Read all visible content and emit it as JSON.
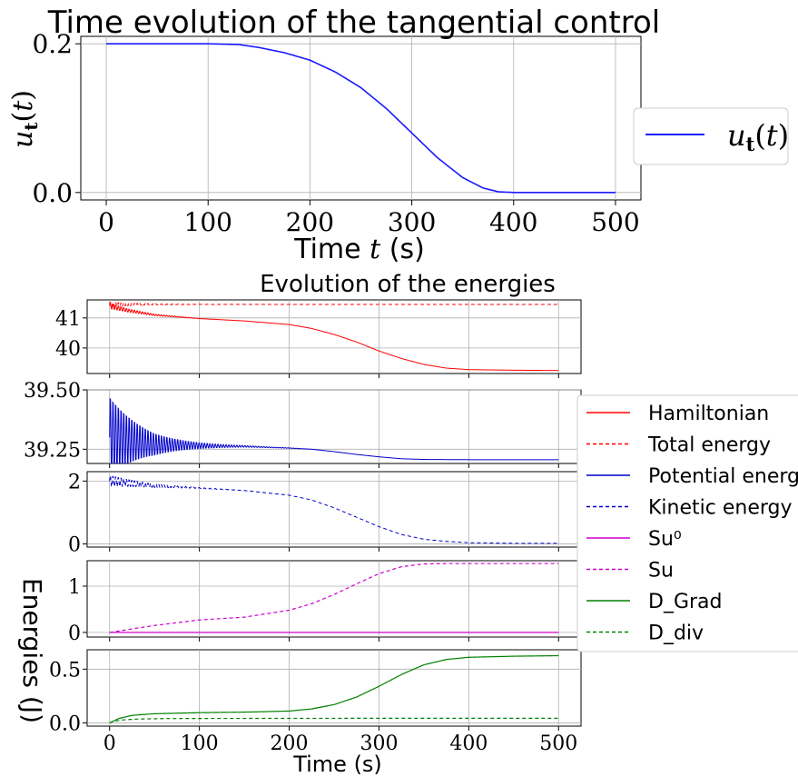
{
  "chart_data": [
    {
      "type": "line",
      "title": "Time evolution of the tangential control",
      "xlabel": "Time t (s)",
      "ylabel": "u_t(t)",
      "xlim": [
        -25,
        525
      ],
      "ylim": [
        -0.01,
        0.21
      ],
      "xticks": [
        "0",
        "100",
        "200",
        "300",
        "400",
        "500"
      ],
      "yticks": [
        "0.0",
        "0.2"
      ],
      "grid": true,
      "legend": "right",
      "series": [
        {
          "name": "u_t(t)",
          "color": "#1a1aff",
          "style": "solid",
          "x": [
            0,
            100,
            130,
            150,
            175,
            200,
            225,
            250,
            275,
            300,
            325,
            350,
            370,
            385,
            400,
            450,
            500
          ],
          "y": [
            0.2,
            0.2,
            0.199,
            0.195,
            0.188,
            0.178,
            0.162,
            0.141,
            0.113,
            0.08,
            0.047,
            0.02,
            0.006,
            0.001,
            0.0,
            0.0,
            0.0
          ]
        }
      ]
    },
    {
      "type": "line",
      "title": "Evolution of the energies",
      "xlabel": "Time (s)",
      "ylabel": "Energies (J)",
      "xlim": [
        -25,
        525
      ],
      "xticks": [
        "0",
        "100",
        "200",
        "300",
        "400",
        "500"
      ],
      "grid": true,
      "legend": "right",
      "legend_entries": [
        {
          "label": "Hamiltonian",
          "color": "#ff0000",
          "style": "solid"
        },
        {
          "label": "Total energy",
          "color": "#ff0000",
          "style": "dashed"
        },
        {
          "label": "Potential energy",
          "color": "#0000cc",
          "style": "solid"
        },
        {
          "label": "Kinetic energy",
          "color": "#0000cc",
          "style": "dashed"
        },
        {
          "label": "Su⁰",
          "color": "#cc00cc",
          "style": "solid"
        },
        {
          "label": "Su",
          "color": "#cc00cc",
          "style": "dashed"
        },
        {
          "label": "D_Grad",
          "color": "#008000",
          "style": "solid"
        },
        {
          "label": "D_div",
          "color": "#008000",
          "style": "dashed"
        }
      ],
      "subplots": [
        {
          "ylim": [
            39.15,
            41.6
          ],
          "yticks": [
            {
              "v": 41,
              "label": "41"
            },
            {
              "v": 40,
              "label": "40"
            }
          ],
          "series": [
            {
              "name": "Total energy",
              "color": "#ff0000",
              "style": "dashed",
              "x": [
                0,
                500
              ],
              "y": [
                41.45,
                41.45
              ],
              "osc": {
                "amp0": 0.08,
                "decay": 40,
                "period": 3
              }
            },
            {
              "name": "Hamiltonian",
              "color": "#ff0000",
              "style": "solid",
              "x": [
                0,
                20,
                50,
                100,
                150,
                200,
                225,
                250,
                275,
                300,
                325,
                350,
                375,
                400,
                425,
                450,
                500
              ],
              "y": [
                41.4,
                41.25,
                41.1,
                40.98,
                40.9,
                40.78,
                40.65,
                40.45,
                40.2,
                39.9,
                39.65,
                39.45,
                39.33,
                39.28,
                39.27,
                39.26,
                39.25
              ],
              "osc": {
                "amp0": 0.1,
                "decay": 40,
                "period": 3
              }
            }
          ]
        },
        {
          "ylim": [
            39.19,
            39.5
          ],
          "yticks": [
            {
              "v": 39.5,
              "label": "39.50"
            },
            {
              "v": 39.25,
              "label": "39.25"
            }
          ],
          "series": [
            {
              "name": "Potential energy",
              "color": "#0000cc",
              "style": "solid",
              "x": [
                0,
                50,
                100,
                150,
                200,
                225,
                250,
                275,
                300,
                325,
                350,
                400,
                450,
                500
              ],
              "y": [
                39.3,
                39.27,
                39.265,
                39.262,
                39.255,
                39.25,
                39.24,
                39.228,
                39.218,
                39.21,
                39.207,
                39.206,
                39.206,
                39.206
              ],
              "osc": {
                "amp0": 0.19,
                "decay": 38,
                "period": 3
              }
            }
          ]
        },
        {
          "ylim": [
            -0.1,
            2.3
          ],
          "yticks": [
            {
              "v": 2,
              "label": "2"
            },
            {
              "v": 0,
              "label": "0"
            }
          ],
          "series": [
            {
              "name": "Kinetic energy",
              "color": "#0000cc",
              "style": "dashed",
              "x": [
                0,
                50,
                100,
                150,
                200,
                225,
                250,
                275,
                300,
                325,
                350,
                375,
                400,
                450,
                500
              ],
              "y": [
                2.0,
                1.85,
                1.78,
                1.7,
                1.55,
                1.4,
                1.15,
                0.85,
                0.55,
                0.3,
                0.15,
                0.08,
                0.04,
                0.02,
                0.02
              ],
              "osc": {
                "amp0": 0.2,
                "decay": 40,
                "period": 3
              }
            }
          ]
        },
        {
          "ylim": [
            -0.1,
            1.55
          ],
          "yticks": [
            {
              "v": 1,
              "label": "1"
            },
            {
              "v": 0,
              "label": "0"
            }
          ],
          "series": [
            {
              "name": "Su⁰",
              "color": "#cc00cc",
              "style": "solid",
              "x": [
                0,
                500
              ],
              "y": [
                0,
                0
              ]
            },
            {
              "name": "Su",
              "color": "#cc00cc",
              "style": "dashed",
              "x": [
                0,
                50,
                100,
                150,
                200,
                225,
                250,
                275,
                300,
                325,
                350,
                375,
                400,
                450,
                500
              ],
              "y": [
                0,
                0.15,
                0.27,
                0.33,
                0.48,
                0.62,
                0.82,
                1.05,
                1.27,
                1.42,
                1.48,
                1.49,
                1.49,
                1.49,
                1.49
              ]
            }
          ]
        },
        {
          "ylim": [
            -0.03,
            0.68
          ],
          "yticks": [
            {
              "v": 0.5,
              "label": "0.5"
            },
            {
              "v": 0,
              "label": "0.0"
            }
          ],
          "series": [
            {
              "name": "D_Grad",
              "color": "#008000",
              "style": "solid",
              "x": [
                0,
                10,
                25,
                50,
                100,
                150,
                200,
                225,
                250,
                275,
                300,
                325,
                350,
                375,
                400,
                450,
                500
              ],
              "y": [
                0,
                0.04,
                0.07,
                0.085,
                0.095,
                0.1,
                0.11,
                0.13,
                0.17,
                0.24,
                0.34,
                0.45,
                0.54,
                0.59,
                0.61,
                0.62,
                0.625
              ]
            },
            {
              "name": "D_div",
              "color": "#008000",
              "style": "dashed",
              "x": [
                0,
                5,
                15,
                30,
                60,
                100,
                200,
                300,
                400,
                500
              ],
              "y": [
                0,
                0.015,
                0.028,
                0.035,
                0.04,
                0.041,
                0.042,
                0.043,
                0.043,
                0.043
              ]
            }
          ]
        }
      ]
    }
  ]
}
